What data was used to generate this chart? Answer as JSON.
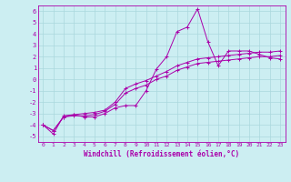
{
  "xlabel": "Windchill (Refroidissement éolien,°C)",
  "bg_color": "#cceef2",
  "grid_color": "#aad8dd",
  "line_color": "#aa00aa",
  "xlim": [
    -0.5,
    23.5
  ],
  "ylim": [
    -5.5,
    6.5
  ],
  "yticks": [
    -5,
    -4,
    -3,
    -2,
    -1,
    0,
    1,
    2,
    3,
    4,
    5,
    6
  ],
  "xticks": [
    0,
    1,
    2,
    3,
    4,
    5,
    6,
    7,
    8,
    9,
    10,
    11,
    12,
    13,
    14,
    15,
    16,
    17,
    18,
    19,
    20,
    21,
    22,
    23
  ],
  "series1_x": [
    0,
    1,
    2,
    3,
    4,
    5,
    6,
    7,
    8,
    9,
    10,
    11,
    12,
    13,
    14,
    15,
    16,
    17,
    18,
    19,
    20,
    21,
    22,
    23
  ],
  "series1_y": [
    -4.0,
    -4.8,
    -3.2,
    -3.1,
    -3.3,
    -3.3,
    -3.0,
    -2.5,
    -2.3,
    -2.3,
    -1.0,
    0.9,
    2.0,
    4.2,
    4.6,
    6.2,
    3.3,
    1.2,
    2.5,
    2.5,
    2.5,
    2.2,
    1.9,
    1.8
  ],
  "series2_x": [
    0,
    1,
    2,
    3,
    4,
    5,
    6,
    7,
    8,
    9,
    10,
    11,
    12,
    13,
    14,
    15,
    16,
    17,
    18,
    19,
    20,
    21,
    22,
    23
  ],
  "series2_y": [
    -4.0,
    -4.5,
    -3.3,
    -3.2,
    -3.2,
    -3.1,
    -2.8,
    -2.2,
    -1.2,
    -0.8,
    -0.5,
    0.0,
    0.3,
    0.8,
    1.1,
    1.4,
    1.5,
    1.6,
    1.7,
    1.8,
    1.9,
    2.0,
    2.0,
    2.1
  ],
  "series3_x": [
    0,
    1,
    2,
    3,
    4,
    5,
    6,
    7,
    8,
    9,
    10,
    11,
    12,
    13,
    14,
    15,
    16,
    17,
    18,
    19,
    20,
    21,
    22,
    23
  ],
  "series3_y": [
    -4.0,
    -4.5,
    -3.3,
    -3.1,
    -3.0,
    -2.9,
    -2.7,
    -2.0,
    -0.8,
    -0.4,
    -0.1,
    0.3,
    0.7,
    1.2,
    1.5,
    1.8,
    1.9,
    2.0,
    2.1,
    2.2,
    2.3,
    2.4,
    2.4,
    2.5
  ]
}
